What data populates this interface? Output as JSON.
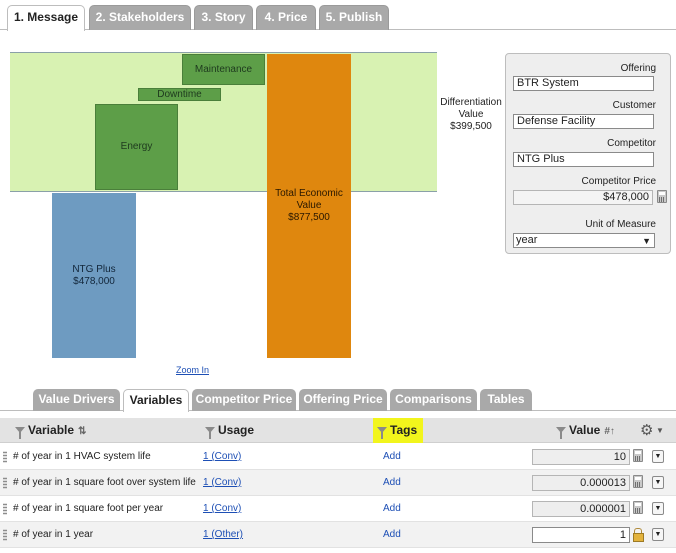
{
  "top_tabs": [
    {
      "label": "1. Message",
      "active": true
    },
    {
      "label": "2. Stakeholders",
      "active": false
    },
    {
      "label": "3. Story",
      "active": false
    },
    {
      "label": "4. Price",
      "active": false
    },
    {
      "label": "5. Publish",
      "active": false
    }
  ],
  "chart": {
    "maintenance": "Maintenance",
    "downtime": "Downtime",
    "energy": "Energy",
    "competitor_bar": {
      "line1": "NTG Plus",
      "line2": "$478,000"
    },
    "total_bar": {
      "line1": "Total Economic",
      "line2": "Value",
      "line3": "$877,500"
    },
    "differentiation": {
      "line1": "Differentiation",
      "line2": "Value",
      "line3": "$399,500"
    },
    "zoom_in": "Zoom In"
  },
  "chart_data": {
    "type": "bar",
    "categories": [
      "NTG Plus",
      "Energy",
      "Downtime",
      "Maintenance",
      "Total Economic Value"
    ],
    "values": [
      478000,
      null,
      null,
      null,
      877500
    ],
    "differentiation_value": 399500,
    "colors": {
      "competitor": "#6e9bc1",
      "drivers": "#5d9e48",
      "total": "#df870e",
      "band": "#d8f2b2"
    }
  },
  "panel": {
    "offering_label": "Offering",
    "offering_value": "BTR System",
    "customer_label": "Customer",
    "customer_value": "Defense Facility",
    "competitor_label": "Competitor",
    "competitor_value": "NTG Plus",
    "competitor_price_label": "Competitor Price",
    "competitor_price_value": "$478,000",
    "unit_label": "Unit of Measure",
    "unit_value": "year"
  },
  "lower_tabs": [
    {
      "label": "Value Drivers",
      "active": false
    },
    {
      "label": "Variables",
      "active": true
    },
    {
      "label": "Competitor Price",
      "active": false
    },
    {
      "label": "Offering Price",
      "active": false
    },
    {
      "label": "Comparisons",
      "active": false
    },
    {
      "label": "Tables",
      "active": false
    }
  ],
  "table": {
    "headers": {
      "variable": "Variable",
      "usage": "Usage",
      "tags": "Tags",
      "value": "Value"
    },
    "rows": [
      {
        "variable": "# of year in 1 HVAC system life",
        "usage": "1 (Conv)",
        "tags": "Add",
        "value": "10"
      },
      {
        "variable": "# of year in 1 square foot over system life",
        "usage": "1 (Conv)",
        "tags": "Add",
        "value": "0.000013"
      },
      {
        "variable": "# of year in 1 square foot per year",
        "usage": "1 (Conv)",
        "tags": "Add",
        "value": "0.000001"
      },
      {
        "variable": "# of year in 1 year",
        "usage": "1 (Other)",
        "tags": "Add",
        "value": "1"
      }
    ]
  }
}
